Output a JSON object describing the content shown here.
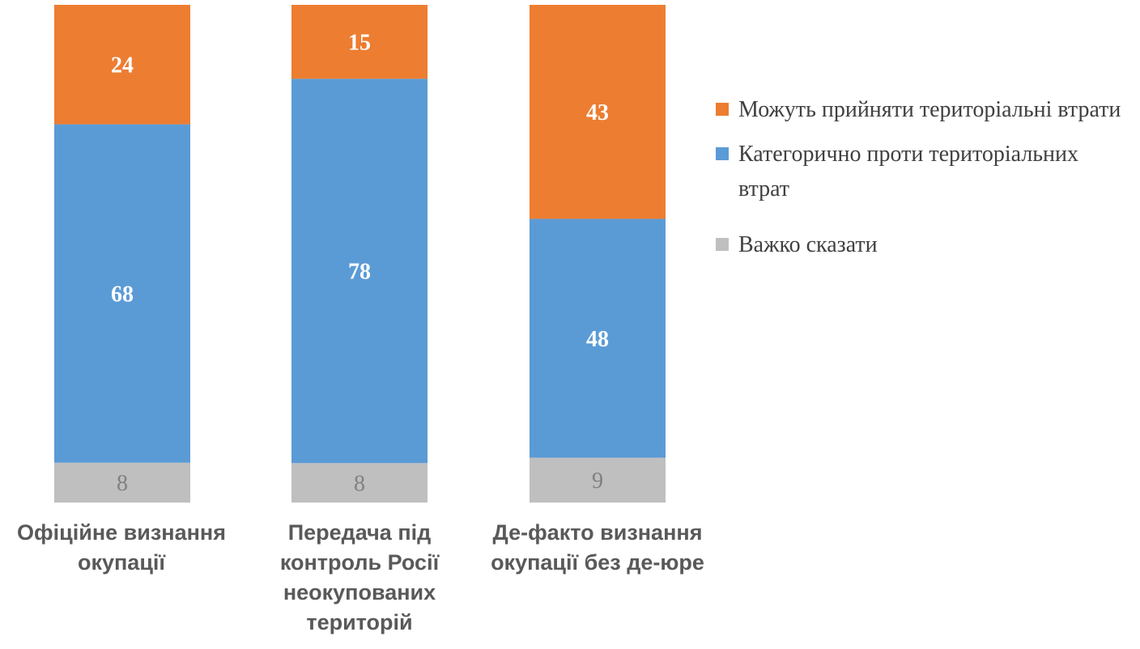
{
  "chart_data": {
    "type": "bar",
    "stacked": true,
    "categories": [
      "Офіційне визнання окупації",
      "Передача під контроль Росії неокупованих територій",
      "Де-факто визнання окупації без де-юре"
    ],
    "series": [
      {
        "name": "Важко сказати",
        "color": "#bfbfbf",
        "values": [
          8,
          8,
          9
        ]
      },
      {
        "name": "Категорично проти територіальних втрат",
        "color": "#5b9bd5",
        "values": [
          68,
          78,
          48
        ]
      },
      {
        "name": "Можуть прийняти територіальні втрати",
        "color": "#ed7d31",
        "values": [
          24,
          15,
          43
        ]
      }
    ],
    "data_labels": [
      [
        "8",
        "8",
        "9"
      ],
      [
        "68",
        "78",
        "48"
      ],
      [
        "24",
        "15",
        "43"
      ]
    ],
    "title": "",
    "xlabel": "",
    "ylabel": "",
    "ylim": [
      0,
      100
    ],
    "grid": false,
    "legend_position": "right"
  },
  "category_labels": [
    "Офіційне визнання\nокупації",
    "Передача під\nконтроль Росії\nнеокупованих\nтериторій",
    "Де-факто визнання\nокупації без де-юре"
  ],
  "legend": [
    {
      "label": "Можуть прийняти територіальні втрати",
      "color": "#ed7d31"
    },
    {
      "label": "Категорично проти територіальних втрат",
      "color": "#5b9bd5"
    },
    {
      "label": "Важко сказати",
      "color": "#bfbfbf"
    }
  ]
}
